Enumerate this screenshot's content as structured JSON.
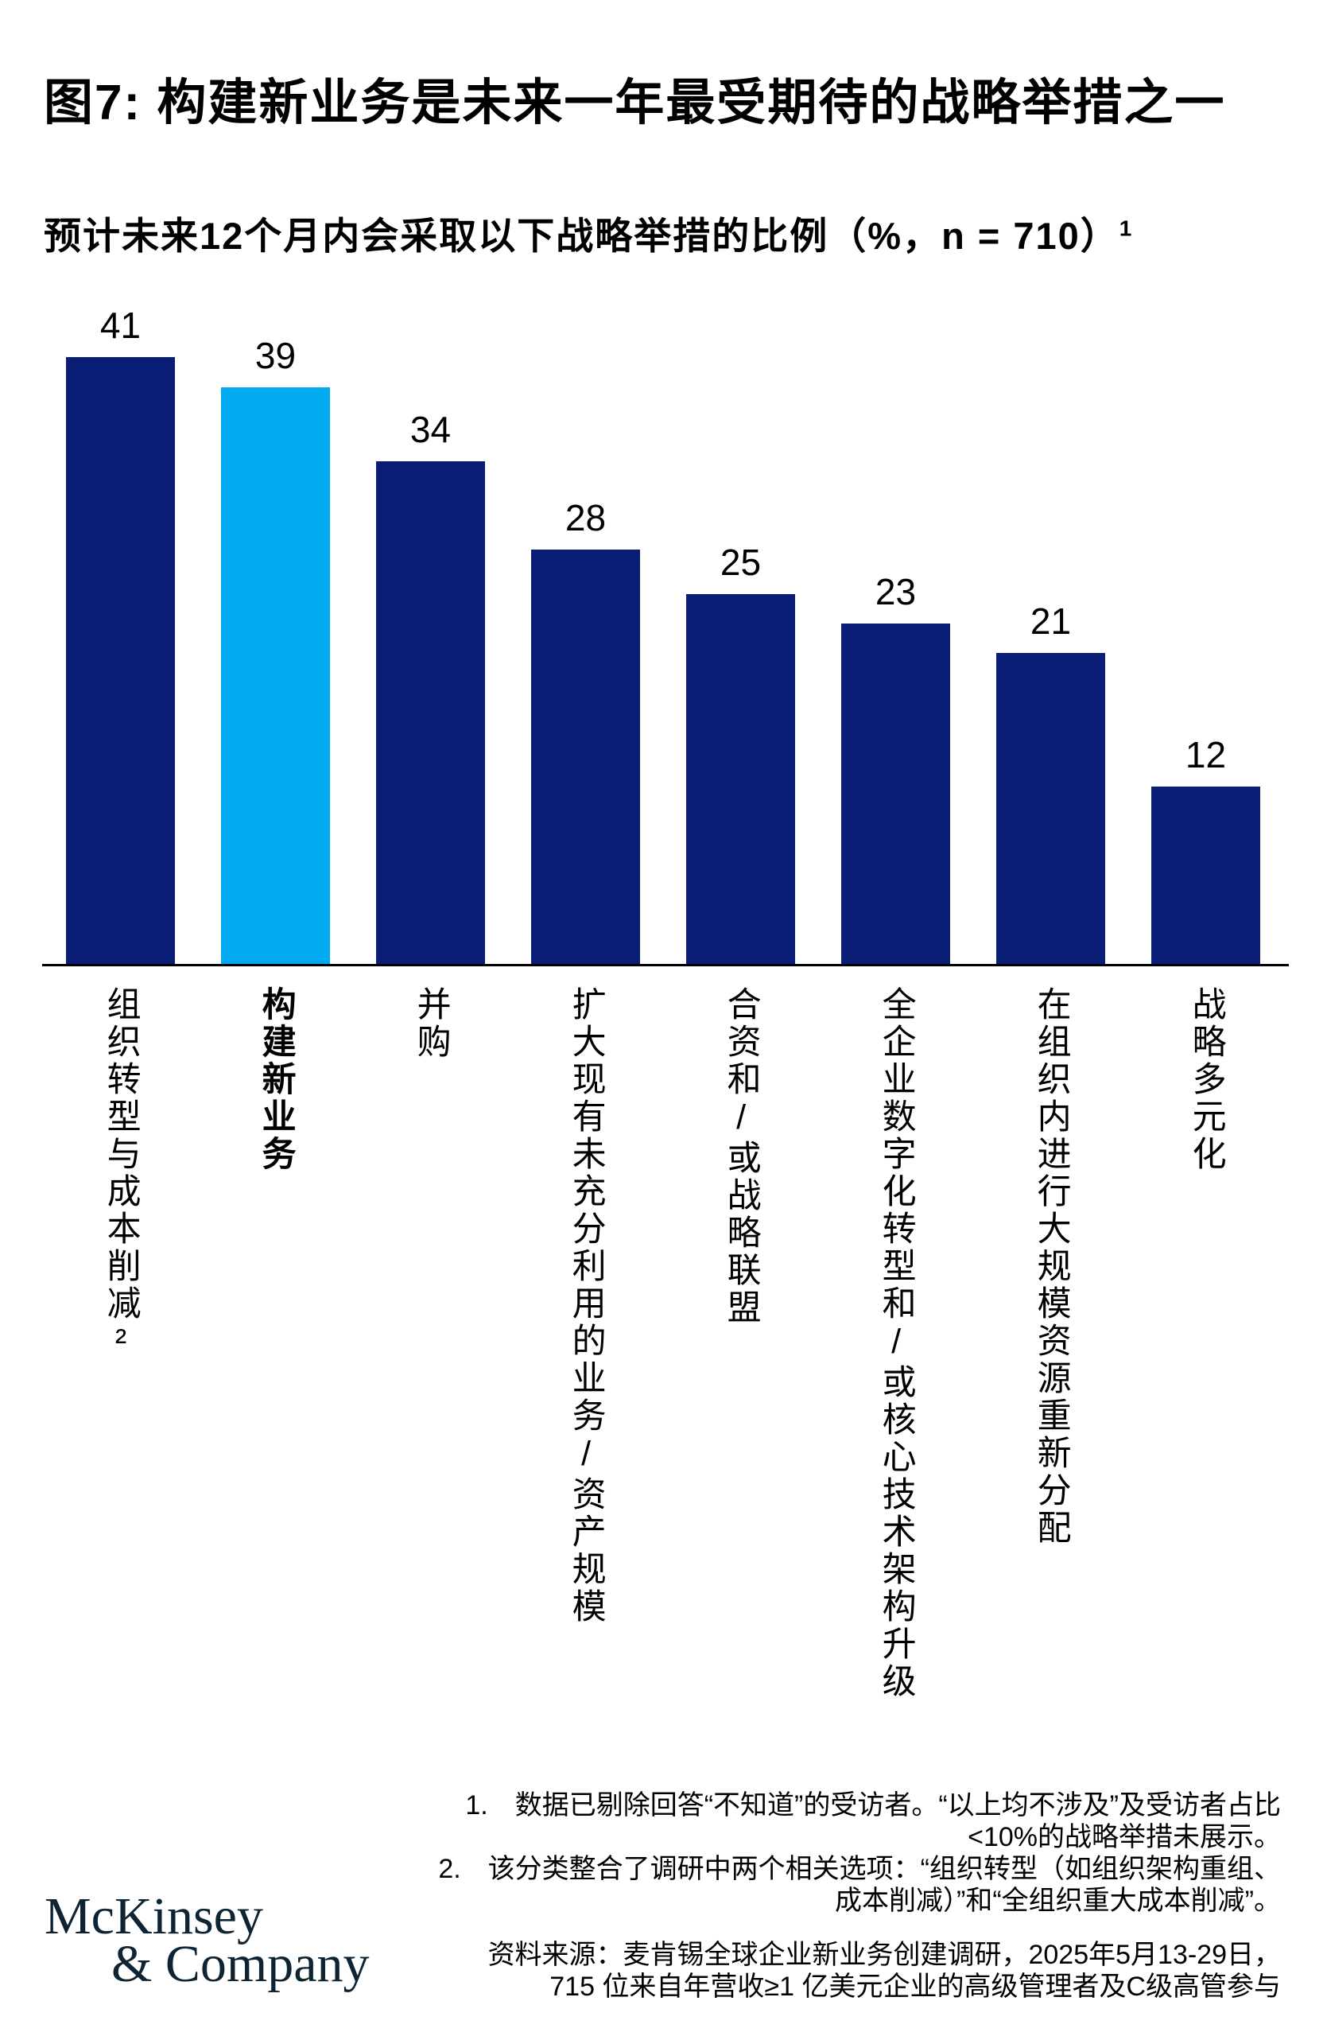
{
  "page": {
    "title": "图7: 构建新业务是未来一年最受期待的战略举措之一",
    "subtitle": "预计未来12个月内会采取以下战略举措的比例（%，n = 710）",
    "subtitle_footnote_marker": "1"
  },
  "chart_data": {
    "type": "bar",
    "title": "预计未来12个月内会采取以下战略举措的比例",
    "unit": "%",
    "sample_label": "n = 710",
    "categories": [
      "组织转型与成本削减²",
      "构建新业务",
      "并购",
      "扩大现有未充分利用的业务/资产规模",
      "合资和/或战略联盟",
      "全企业数字化转型和/或核心技术架构升级",
      "在组织内进行大规模资源重新分配",
      "战略多元化"
    ],
    "values": [
      41,
      39,
      34,
      28,
      25,
      23,
      21,
      12
    ],
    "highlighted_index": 1,
    "bar_color_default": "#0A1E78",
    "bar_color_highlight": "#00A9F0",
    "ylim": [
      0,
      41
    ],
    "grid": false,
    "legend": false,
    "value_labels": true,
    "category_label_orientation": "vertical"
  },
  "footnotes": [
    {
      "number": "1.",
      "lines": [
        "数据已剔除回答“不知道”的受访者。“以上均不涉及”及受访者占比",
        "<10%的战略举措未展示。"
      ]
    },
    {
      "number": "2.",
      "lines": [
        "该分类整合了调研中两个相关选项：“组织转型（如组织架构重组、",
        "成本削减）”和“全组织重大成本削减”。"
      ]
    }
  ],
  "source_lines": [
    "资料来源：麦肯锡全球企业新业务创建调研，2025年5月13-29日，",
    "715 位来自年营收≥1 亿美元企业的高级管理者及C级高管参与"
  ],
  "logo": {
    "line1": "McKinsey",
    "line2": "& Company"
  }
}
